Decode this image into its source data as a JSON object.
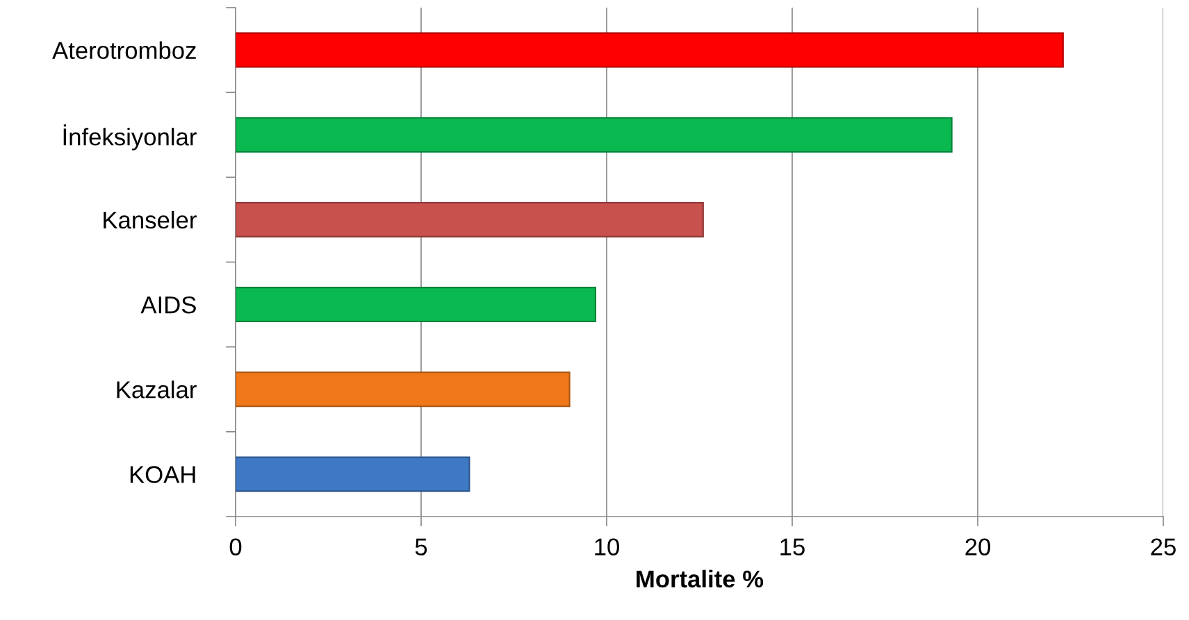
{
  "chart_data": {
    "type": "bar",
    "orientation": "horizontal",
    "categories": [
      "Aterotromboz",
      "İnfeksiyonlar",
      "Kanseler",
      "AIDS",
      "Kazalar",
      "KOAH"
    ],
    "values": [
      22.3,
      19.3,
      12.6,
      9.7,
      9.0,
      6.3
    ],
    "colors": [
      "#ff0000",
      "#0ab850",
      "#c8504d",
      "#0ab850",
      "#f07818",
      "#3f78c4"
    ],
    "xlabel": "Mortalite %",
    "xlim": [
      0,
      25
    ],
    "xticks": [
      0,
      5,
      10,
      15,
      20,
      25
    ],
    "grid": "x"
  }
}
